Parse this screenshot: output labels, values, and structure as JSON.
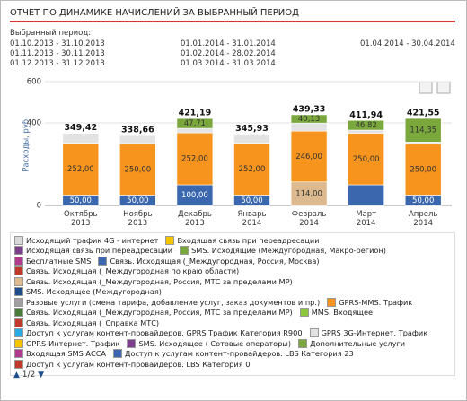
{
  "header": {
    "title": "ОТЧЕТ ПО ДИНАМИКЕ НАЧИСЛЕНИЙ ЗА ВЫБРАННЫЙ ПЕРИОД",
    "period_label": "Выбранный период:",
    "periods": [
      [
        "01.10.2013 - 31.10.2013",
        "01.11.2013 - 30.11.2013",
        "01.12.2013 - 31.12.2013"
      ],
      [
        "01.01.2014 - 31.01.2014",
        "01.02.2014 - 28.02.2014",
        "01.03.2014 - 31.03.2014"
      ],
      [
        "01.04.2014 - 30.04.2014"
      ]
    ]
  },
  "chart_data": {
    "type": "stacked_bar",
    "ylabel": "Расходы, руб.",
    "categories": [
      "Октябрь 2013",
      "Ноябрь 2013",
      "Декабрь 2013",
      "Январь 2014",
      "Февраль 2014",
      "Март 2014",
      "Апрель 2014"
    ],
    "ylim": [
      0,
      600
    ],
    "yticks": [
      0,
      400,
      600
    ],
    "grid": true,
    "totals": [
      349.42,
      338.66,
      421.19,
      345.93,
      439.33,
      411.94,
      421.55
    ],
    "total_labels": [
      "349,42",
      "338,66",
      "421,19",
      "345,93",
      "439,33",
      "411,94",
      "421,55"
    ],
    "series": [
      {
        "name": "Исходящий трафик 4G - интернет",
        "color": "#d9d9d9",
        "values": [
          null,
          null,
          null,
          null,
          null,
          null,
          null
        ]
      },
      {
        "name": "Входящая связь при переадресации",
        "color": "#f5c400",
        "values": [
          null,
          null,
          null,
          null,
          null,
          null,
          null
        ]
      },
      {
        "name": "Исходящая связь при переадресации",
        "color": "#7b3f8c",
        "values": [
          null,
          null,
          null,
          null,
          null,
          null,
          null
        ]
      },
      {
        "name": "SMS. Исходящие (Междугородная, Макро-регион)",
        "color": "#7aa83c",
        "values": [
          null,
          null,
          null,
          null,
          null,
          null,
          null
        ]
      },
      {
        "name": "Бесплатные SMS",
        "color": "#b03a8c",
        "values": [
          null,
          null,
          null,
          null,
          null,
          null,
          null
        ]
      },
      {
        "name": "Связь. Исходящая (_Междугородная, Россия, Москва)",
        "color": "#3a67ad",
        "values": [
          50,
          50,
          100,
          50,
          null,
          100,
          50
        ],
        "value_labels": [
          "50,00",
          "50,00",
          "100,00",
          "50,00",
          null,
          null,
          "50,00"
        ]
      },
      {
        "name": "Связь. Исходящая (_Междугородная по краю области)",
        "color": "#c0392b",
        "values": [
          null,
          null,
          null,
          null,
          null,
          null,
          null
        ]
      },
      {
        "name": "Связь. Исходящая (_Междугородная, Россия, МТС за пределами МР)",
        "color": "#dcb98e",
        "values": [
          null,
          null,
          null,
          null,
          114,
          null,
          null
        ],
        "value_labels": [
          null,
          null,
          null,
          null,
          "114,00",
          null,
          null
        ]
      },
      {
        "name": "SMS. Исходящее (Междугородная)",
        "color": "#1f4e8c",
        "values": [
          null,
          null,
          null,
          null,
          null,
          null,
          null
        ]
      },
      {
        "name": "Разовые услуги (смена тарифа, добавление услуг, заказ документов и пр.)",
        "color": "#a0a0a0",
        "values": [
          null,
          null,
          null,
          null,
          null,
          null,
          null
        ]
      },
      {
        "name": "GPRS-MMS. Трафик",
        "color": "#f7941d",
        "values": [
          252,
          250,
          252,
          252,
          246,
          250,
          250
        ],
        "value_labels": [
          "252,00",
          "250,00",
          "252,00",
          "252,00",
          "246,00",
          "250,00",
          "250,00"
        ]
      },
      {
        "name": "Связь. Исходящая (_Междугородная, Россия, МТС за пределами МР)",
        "color": "#4a7a3a",
        "values": [
          null,
          null,
          null,
          null,
          null,
          null,
          null
        ]
      },
      {
        "name": "MMS. Входящее",
        "color": "#8dc63f",
        "values": [
          null,
          null,
          null,
          null,
          null,
          null,
          null
        ]
      },
      {
        "name": "Связь. Исходящая (_Справка МТС)",
        "color": "#c0392b",
        "values": [
          null,
          null,
          null,
          null,
          null,
          null,
          null
        ]
      },
      {
        "name": "Доступ к услугам контент-провайдеров. GPRS Трафик Категория R900",
        "color": "#29abe2",
        "values": [
          null,
          null,
          null,
          null,
          null,
          null,
          null
        ]
      },
      {
        "name": "GPRS 3G-Интернет. Трафик",
        "color": "#e3e3e3",
        "values": [
          47.42,
          38.66,
          21.48,
          43.93,
          39.2,
          15.12,
          7.2
        ]
      },
      {
        "name": "GPRS-Интернет. Трафик",
        "color": "#f5c400",
        "values": [
          null,
          null,
          null,
          null,
          null,
          null,
          null
        ]
      },
      {
        "name": "SMS. Исходящее ( Сотовые операторы)",
        "color": "#7b3f8c",
        "values": [
          null,
          null,
          null,
          null,
          null,
          null,
          null
        ]
      },
      {
        "name": "Дополнительные услуги",
        "color": "#7aa83c",
        "values": [
          null,
          null,
          47.71,
          null,
          40.13,
          46.82,
          114.35
        ],
        "value_labels": [
          null,
          null,
          "47,71",
          null,
          "40,13",
          "46,82",
          "114,35"
        ]
      },
      {
        "name": "Входящая SMS АССА",
        "color": "#b03a8c",
        "values": [
          null,
          null,
          null,
          null,
          null,
          null,
          null
        ]
      },
      {
        "name": "Доступ к услугам контент-провайдеров. LBS Категория 23",
        "color": "#3a67ad",
        "values": [
          null,
          null,
          null,
          null,
          null,
          null,
          null
        ]
      },
      {
        "name": "Доступ к услугам контент-провайдеров. LBS Категория 0",
        "color": "#c0392b",
        "values": [
          null,
          null,
          null,
          null,
          null,
          null,
          null
        ]
      }
    ],
    "pager": "1/2"
  }
}
